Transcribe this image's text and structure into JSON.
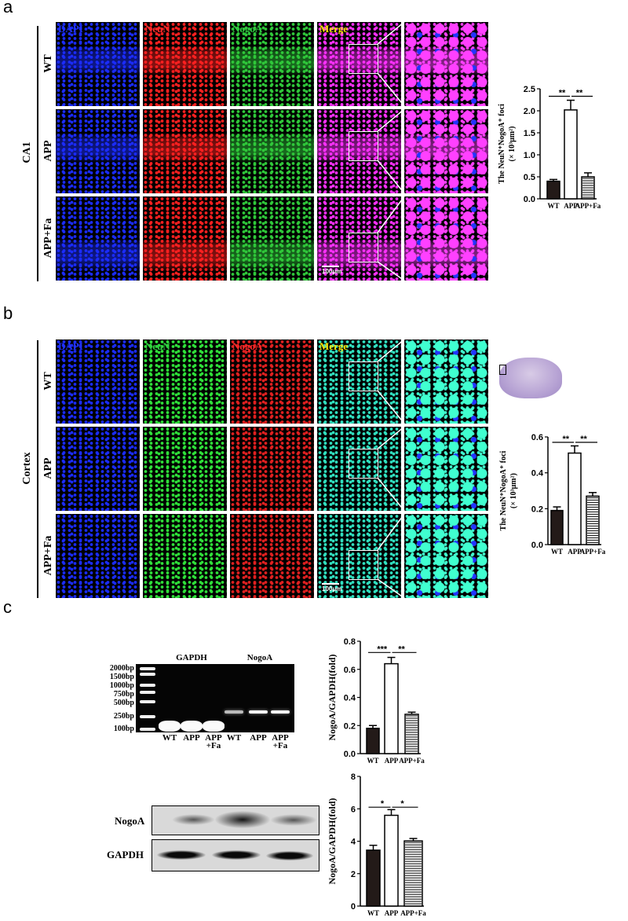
{
  "panels": {
    "a": {
      "label": "a",
      "region": "CA1",
      "channels": [
        "DAPI",
        "NeuN",
        "NogoA",
        "Merge"
      ],
      "channel_colors": [
        "#2233ff",
        "#ff2a2a",
        "#2ecc40",
        "#ffe600"
      ],
      "rows": [
        "WT",
        "APP",
        "APP+Fa"
      ],
      "scale_bar": "100μm"
    },
    "b": {
      "label": "b",
      "region": "Cortex",
      "channels": [
        "DAPI",
        "NeuN",
        "NogoA",
        "Merge"
      ],
      "channel_colors": [
        "#2233ff",
        "#2ecc40",
        "#ff2a2a",
        "#ffe600"
      ],
      "rows": [
        "WT",
        "APP",
        "APP+Fa"
      ],
      "scale_bar": "100μm"
    },
    "c": {
      "label": "c",
      "gel": {
        "ladder": [
          "2000bp",
          "1500bp",
          "1000bp",
          "750bp",
          "500bp",
          "250bp",
          "100bp"
        ],
        "groups": [
          "GAPDH",
          "NogoA"
        ],
        "lanes": [
          "WT",
          "APP",
          "APP\n+Fa",
          "WT",
          "APP",
          "APP\n+Fa"
        ]
      },
      "western": {
        "rows": [
          "NogoA",
          "GAPDH"
        ]
      }
    }
  },
  "chart_data": [
    {
      "type": "bar",
      "panel": "a",
      "categories": [
        "WT",
        "APP",
        "APP+Fa"
      ],
      "values": [
        0.4,
        2.02,
        0.5
      ],
      "errors": [
        0.04,
        0.22,
        0.09
      ],
      "ylabel": [
        "The NeuN⁺NogoA⁺ foci",
        "(× 10³μm²)"
      ],
      "ylim": [
        0,
        2.5
      ],
      "yticks": [
        "0.0",
        "0.5",
        "1.0",
        "1.5",
        "2.0",
        "2.5"
      ],
      "bar_styles": [
        "dark",
        "white",
        "striped"
      ],
      "significance": [
        {
          "from": "WT",
          "to": "APP",
          "label": "**",
          "y": 2.33
        },
        {
          "from": "APP",
          "to": "APP+Fa",
          "label": "**",
          "y": 2.33
        }
      ]
    },
    {
      "type": "bar",
      "panel": "b",
      "categories": [
        "WT",
        "APP",
        "APP+Fa"
      ],
      "values": [
        0.19,
        0.51,
        0.27
      ],
      "errors": [
        0.02,
        0.04,
        0.02
      ],
      "ylabel": [
        "The NeuN⁺NogoA⁺ foci",
        "(× 10³μm²)"
      ],
      "ylim": [
        0,
        0.6
      ],
      "yticks": [
        "0.0",
        "0.2",
        "0.4",
        "0.6"
      ],
      "bar_styles": [
        "dark",
        "white",
        "striped"
      ],
      "significance": [
        {
          "from": "WT",
          "to": "APP",
          "label": "**",
          "y": 0.57
        },
        {
          "from": "APP",
          "to": "APP+Fa",
          "label": "**",
          "y": 0.57
        }
      ]
    },
    {
      "type": "bar",
      "panel": "c-gel",
      "categories": [
        "WT",
        "APP",
        "APP+Fa"
      ],
      "values": [
        0.18,
        0.64,
        0.28
      ],
      "errors": [
        0.02,
        0.045,
        0.015
      ],
      "ylabel": [
        "NogoA/GAPDH(fold)"
      ],
      "ylim": [
        0,
        0.8
      ],
      "yticks": [
        "0.0",
        "0.2",
        "0.4",
        "0.6",
        "0.8"
      ],
      "bar_styles": [
        "dark",
        "white",
        "striped"
      ],
      "significance": [
        {
          "from": "WT",
          "to": "APP",
          "label": "***",
          "y": 0.72
        },
        {
          "from": "APP",
          "to": "APP+Fa",
          "label": "**",
          "y": 0.72
        }
      ]
    },
    {
      "type": "bar",
      "panel": "c-western",
      "categories": [
        "WT",
        "APP",
        "APP+Fa"
      ],
      "values": [
        3.45,
        5.6,
        4.02
      ],
      "errors": [
        0.3,
        0.35,
        0.15
      ],
      "ylabel": [
        "NogoA/GAPDH(fold)"
      ],
      "ylim": [
        0,
        8
      ],
      "yticks": [
        "0",
        "2",
        "4",
        "6",
        "8"
      ],
      "bar_styles": [
        "dark",
        "white",
        "striped"
      ],
      "significance": [
        {
          "from": "WT",
          "to": "APP",
          "label": "*",
          "y": 6.1
        },
        {
          "from": "APP",
          "to": "APP+Fa",
          "label": "*",
          "y": 6.1
        }
      ]
    }
  ]
}
